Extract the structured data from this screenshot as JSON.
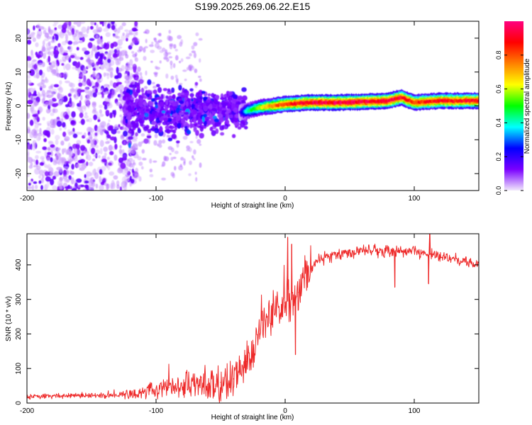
{
  "title": "S199.2025.269.06.22.E15",
  "chart_data": [
    {
      "type": "heatmap",
      "title": "S199.2025.269.06.22.E15",
      "xlabel": "Height of straight line (km)",
      "ylabel": "Frequency (Hz)",
      "xlim": [
        -200,
        150
      ],
      "ylim": [
        -25,
        25
      ],
      "x_ticks": [
        -200,
        -100,
        0,
        100
      ],
      "y_ticks": [
        -20,
        -10,
        0,
        10,
        20
      ],
      "colorbar": {
        "label": "Normalized spectral amplitude",
        "range": [
          0,
          1
        ],
        "ticks": [
          0.0,
          0.2,
          0.4,
          0.6,
          0.8
        ],
        "tick_labels": [
          "0.0",
          "0.2",
          "0.4",
          "0.6",
          "0.8"
        ],
        "colors": [
          "#f2eafc",
          "#7a00ff",
          "#0000ff",
          "#00ffff",
          "#00ff00",
          "#ffff00",
          "#ff8000",
          "#ff0000",
          "#ff0080"
        ]
      },
      "noise_region": {
        "x_range": [
          -200,
          -120
        ],
        "y_range": [
          -25,
          25
        ],
        "typical_amplitude": 0.08
      },
      "transition_region": {
        "x_range": [
          -125,
          -30
        ],
        "y_range": [
          -15,
          8
        ],
        "typical_amplitude": 0.2
      },
      "signal_band": [
        {
          "x": -35,
          "freq": -2.0,
          "amplitude": 0.15
        },
        {
          "x": -30,
          "freq": -1.5,
          "amplitude": 0.4
        },
        {
          "x": -20,
          "freq": -0.5,
          "amplitude": 0.6
        },
        {
          "x": -10,
          "freq": 0.0,
          "amplitude": 0.75
        },
        {
          "x": 0,
          "freq": 0.5,
          "amplitude": 0.85
        },
        {
          "x": 20,
          "freq": 1.0,
          "amplitude": 0.95
        },
        {
          "x": 40,
          "freq": 1.0,
          "amplitude": 0.95
        },
        {
          "x": 60,
          "freq": 1.2,
          "amplitude": 0.95
        },
        {
          "x": 80,
          "freq": 1.5,
          "amplitude": 0.95
        },
        {
          "x": 90,
          "freq": 2.5,
          "amplitude": 0.9
        },
        {
          "x": 100,
          "freq": 1.0,
          "amplitude": 0.85
        },
        {
          "x": 120,
          "freq": 1.5,
          "amplitude": 0.9
        },
        {
          "x": 150,
          "freq": 1.5,
          "amplitude": 0.9
        }
      ]
    },
    {
      "type": "line",
      "xlabel": "Height of straight line (km)",
      "ylabel": "SNR (10 * v/v)",
      "xlim": [
        -200,
        150
      ],
      "ylim": [
        0,
        490
      ],
      "x_ticks": [
        -200,
        -100,
        0,
        100
      ],
      "y_ticks": [
        0,
        100,
        200,
        300,
        400
      ],
      "series": [
        {
          "name": "SNR",
          "color": "#ee2a2a",
          "x": [
            -200,
            -180,
            -160,
            -140,
            -120,
            -110,
            -100,
            -90,
            -80,
            -70,
            -60,
            -50,
            -40,
            -35,
            -30,
            -25,
            -20,
            -15,
            -10,
            -5,
            0,
            5,
            10,
            15,
            20,
            25,
            30,
            40,
            50,
            60,
            70,
            80,
            90,
            100,
            110,
            120,
            130,
            140,
            150
          ],
          "y": [
            20,
            20,
            22,
            22,
            25,
            30,
            40,
            45,
            50,
            50,
            55,
            60,
            70,
            90,
            120,
            160,
            200,
            240,
            260,
            280,
            290,
            300,
            320,
            360,
            390,
            410,
            420,
            430,
            435,
            440,
            440,
            440,
            440,
            440,
            430,
            425,
            420,
            410,
            400
          ]
        }
      ],
      "spikes": [
        {
          "x": 2,
          "y": 480
        },
        {
          "x": 5,
          "y": 460
        },
        {
          "x": 8,
          "y": 140
        },
        {
          "x": 85,
          "y": 335
        },
        {
          "x": 111,
          "y": 345
        },
        {
          "x": 112,
          "y": 490
        }
      ]
    }
  ]
}
